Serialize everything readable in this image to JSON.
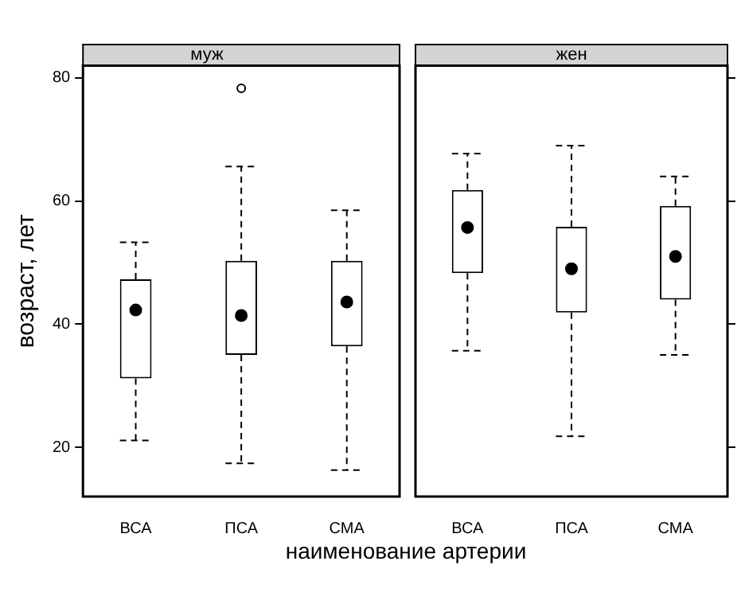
{
  "chart_data": [
    {
      "type": "box",
      "title": "муж",
      "xlabel": "наименование артерии",
      "ylabel": "возраст, лет",
      "categories": [
        "ВСА",
        "ПСА",
        "СМА"
      ],
      "color": "#000000",
      "ylim": [
        12,
        82
      ],
      "yticks": [
        20,
        40,
        60,
        80
      ],
      "grid": false,
      "boxes": [
        {
          "low": 21.1,
          "q1": 31.2,
          "median": 42.3,
          "q3": 47.3,
          "high": 53.3
        },
        {
          "low": 17.4,
          "q1": 35,
          "median": 41.4,
          "q3": 50.3,
          "high": 65.6,
          "outliers": [
            78.3
          ]
        },
        {
          "low": 16.3,
          "q1": 36.4,
          "median": 43.6,
          "q3": 50.3,
          "high": 58.5
        }
      ]
    },
    {
      "type": "box",
      "title": "жен",
      "categories": [
        "ВСА",
        "ПСА",
        "СМА"
      ],
      "color": "#000000",
      "ylim": [
        12,
        82
      ],
      "yticks": [
        20,
        40,
        60,
        80
      ],
      "grid": false,
      "tick_labels": "x",
      "boxes": [
        {
          "low": 35.7,
          "q1": 48.3,
          "median": 55.7,
          "q3": 61.8,
          "high": 67.7
        },
        {
          "low": 21.8,
          "q1": 41.9,
          "median": 49,
          "q3": 55.8,
          "high": 69
        },
        {
          "low": 35,
          "q1": 44,
          "median": 51,
          "q3": 59.2,
          "high": 64
        }
      ]
    }
  ]
}
